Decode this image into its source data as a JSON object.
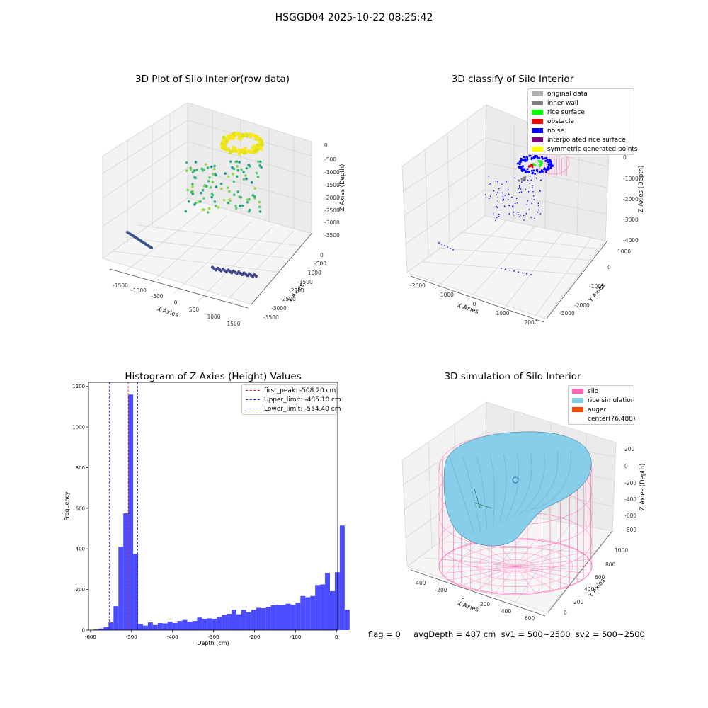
{
  "figure": {
    "title": "HSGGD04 2025-10-22 08:25:42",
    "footer": "flag = 0     avgDepth = 487 cm  sv1 = 500~2500  sv2 = 500~2500"
  },
  "colors": {
    "hist_bar": "#4b4bff",
    "peak_line": "#e02020",
    "limit_line": "#1a1aff",
    "silo": "#ff69b4",
    "rice_simulation": "#87ceeb",
    "auger": "#ff4500"
  },
  "panel_raw": {
    "title": "3D Plot of Silo Interior(row data)",
    "xlabel": "X Axies",
    "ylabel": "Y Axies",
    "zlabel": "Z Axies (Depth)",
    "x_ticks": [
      "-1500",
      "-1000",
      "-500",
      "0",
      "500",
      "1000",
      "1500"
    ],
    "y_ticks": [
      "0",
      "-500",
      "-1000",
      "-1500",
      "-2000",
      "-2500",
      "-3000",
      "-3500"
    ],
    "z_ticks": [
      "0",
      "-500",
      "-1000",
      "-1500",
      "-2000",
      "-2500",
      "-3000",
      "-3500"
    ]
  },
  "panel_classify": {
    "title": "3D classify of Silo Interior",
    "xlabel": "X Axies",
    "ylabel": "Y Axies",
    "zlabel": "Z Axies (Depth)",
    "x_ticks": [
      "-2000",
      "-1000",
      "0",
      "1000",
      "2000"
    ],
    "y_ticks": [
      "1000",
      "0",
      "-1000",
      "-2000",
      "-3000"
    ],
    "z_ticks": [
      "0",
      "-1000",
      "-2000",
      "-3000",
      "-4000"
    ],
    "legend": [
      {
        "label": "original data",
        "color": "#b0b0b0"
      },
      {
        "label": "inner wall",
        "color": "#808080"
      },
      {
        "label": "rice surface",
        "color": "#00ff00"
      },
      {
        "label": "obstacle",
        "color": "#ff0000"
      },
      {
        "label": "noise",
        "color": "#0000ff"
      },
      {
        "label": "interpolated rice surface",
        "color": "#800080"
      },
      {
        "label": "symmetric generated points",
        "color": "#ffff00"
      }
    ]
  },
  "panel_sim": {
    "title": "3D simulation of Silo Interior",
    "xlabel": "X Axies",
    "ylabel": "Y Axies",
    "zlabel": "Z Axies (Depth)",
    "x_ticks": [
      "-400",
      "-200",
      "0",
      "200",
      "400",
      "600"
    ],
    "y_ticks": [
      "1000",
      "800",
      "600",
      "400",
      "200",
      "0"
    ],
    "z_ticks": [
      "200",
      "0",
      "-200",
      "-400",
      "-600",
      "-800"
    ],
    "legend": [
      {
        "label": "silo",
        "color": "#ff69b4"
      },
      {
        "label": "rice simulation",
        "color": "#87ceeb"
      },
      {
        "label": "auger",
        "color": "#ff4500"
      },
      {
        "label": "center(76,488)",
        "color": ""
      }
    ]
  },
  "chart_data": [
    {
      "type": "bar",
      "title": "Histogram of Z-Axies (Height) Values",
      "xlabel": "Depth (cm)",
      "ylabel": "Frequency",
      "xlim": [
        -605,
        3
      ],
      "ylim": [
        0,
        1220
      ],
      "x_ticks": [
        -600,
        -500,
        -400,
        -300,
        -200,
        -100,
        0
      ],
      "y_ticks": [
        0,
        200,
        400,
        600,
        800,
        1000,
        1200
      ],
      "bin_start": -592,
      "bin_width": 12,
      "values": [
        3,
        8,
        15,
        38,
        118,
        410,
        575,
        1160,
        375,
        30,
        22,
        38,
        25,
        35,
        33,
        42,
        35,
        45,
        50,
        42,
        45,
        62,
        55,
        58,
        55,
        65,
        75,
        80,
        100,
        78,
        100,
        88,
        100,
        110,
        108,
        115,
        122,
        125,
        125,
        130,
        125,
        135,
        168,
        162,
        168,
        222,
        225,
        280,
        192,
        285,
        515,
        100
      ],
      "lines": [
        {
          "label": "first_peak: -508.20 cm",
          "x": -508.2,
          "color": "#e02020"
        },
        {
          "label": "Upper_limit: -485.10 cm",
          "x": -485.1,
          "color": "#1a1aff"
        },
        {
          "label": "Lower_limit: -554.40 cm",
          "x": -554.4,
          "color": "#1a1aff"
        }
      ],
      "legend_position": "upper-right"
    }
  ]
}
